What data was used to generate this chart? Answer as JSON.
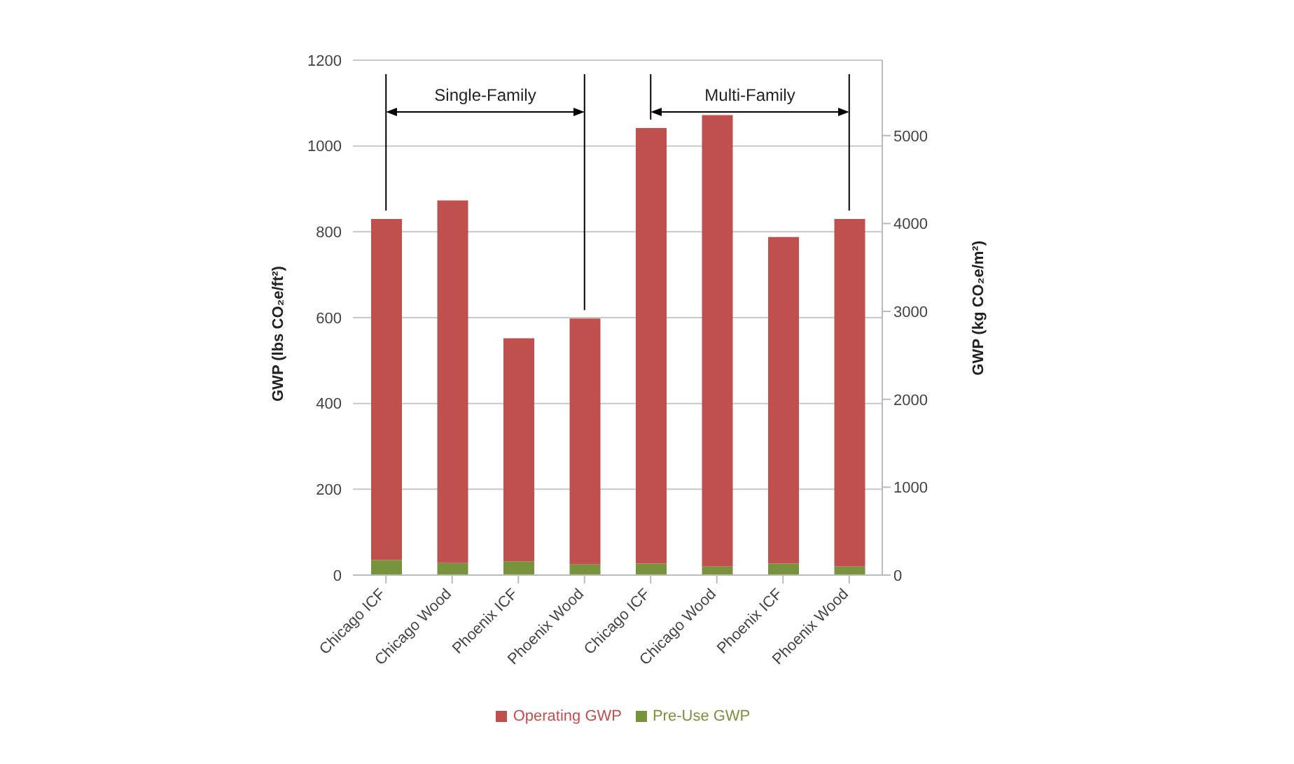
{
  "chart_data": {
    "type": "bar",
    "stacked": true,
    "categories": [
      "Chicago ICF",
      "Chicago Wood",
      "Phoenix ICF",
      "Phoenix Wood",
      "Chicago ICF",
      "Chicago Wood",
      "Phoenix ICF",
      "Phoenix Wood"
    ],
    "series": [
      {
        "name": "Pre-Use GWP",
        "color": "#77933c",
        "values": [
          35,
          28,
          32,
          25,
          27,
          20,
          27,
          20
        ]
      },
      {
        "name": "Operating GWP",
        "color": "#c0504d",
        "values": [
          795,
          845,
          520,
          573,
          1015,
          1052,
          761,
          810
        ]
      }
    ],
    "ylabel": "GWP (lbs CO₂e/ft²)",
    "y2label": "GWP (kg CO₂e/m²)",
    "ylim": [
      0,
      1200
    ],
    "yticks": [
      0,
      200,
      400,
      600,
      800,
      1000,
      1200
    ],
    "y2lim": [
      0,
      5858
    ],
    "y2ticks": [
      0,
      1000,
      2000,
      3000,
      4000,
      5000
    ],
    "annotations": [
      "Single-Family",
      "Multi-Family"
    ],
    "grid": "y",
    "legend": "bottom"
  }
}
